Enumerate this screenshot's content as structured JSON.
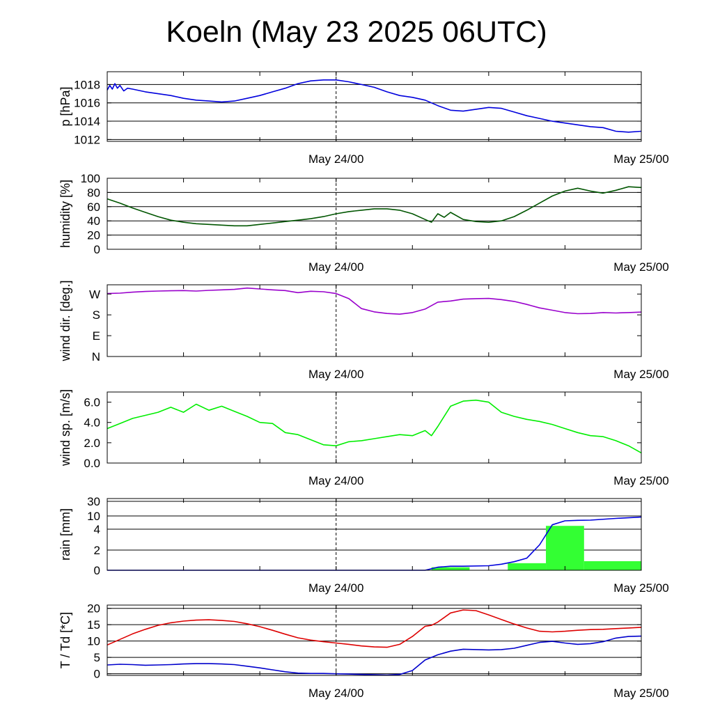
{
  "title": "Koeln (May 23 2025 06UTC)",
  "x_range_hours": [
    0,
    42
  ],
  "colors": {
    "pressure": "#0000dd",
    "humidity": "#005500",
    "wind_dir": "#9900cc",
    "wind_speed": "#00ee00",
    "rain_bar": "#33ff33",
    "rain_accum": "#0000dd",
    "temperature": "#dd0000",
    "dewpoint": "#0000cc"
  },
  "chart_data": [
    {
      "type": "line",
      "ylabel": "p [hPa]",
      "ylim": [
        1011.8,
        1019.4
      ],
      "yticks": [
        1012,
        1014,
        1016,
        1018
      ],
      "ytick_labels": [
        "1012",
        "1014",
        "1016",
        "1018"
      ],
      "grid": true,
      "xtick_labels": [
        {
          "x": 18,
          "label": "May 24/00"
        },
        {
          "x": 42,
          "label": "May 25/00"
        }
      ],
      "series": [
        {
          "color_key": "pressure",
          "x": [
            0,
            0.2,
            0.4,
            0.6,
            0.8,
            1.0,
            1.3,
            1.6,
            2,
            3,
            4,
            5,
            6,
            7,
            8,
            9,
            10,
            11,
            12,
            13,
            14,
            15,
            16,
            17,
            18,
            19,
            20,
            21,
            22,
            23,
            24,
            25,
            26,
            27,
            28,
            29,
            30,
            31,
            32,
            33,
            34,
            35,
            36,
            37,
            38,
            39,
            40,
            41,
            42
          ],
          "y": [
            1017.4,
            1017.9,
            1017.5,
            1018.1,
            1017.6,
            1017.9,
            1017.3,
            1017.6,
            1017.5,
            1017.2,
            1017.0,
            1016.8,
            1016.5,
            1016.3,
            1016.2,
            1016.1,
            1016.2,
            1016.5,
            1016.8,
            1017.2,
            1017.6,
            1018.1,
            1018.4,
            1018.5,
            1018.5,
            1018.3,
            1018.0,
            1017.7,
            1017.2,
            1016.8,
            1016.6,
            1016.3,
            1015.7,
            1015.2,
            1015.1,
            1015.3,
            1015.5,
            1015.4,
            1015.0,
            1014.6,
            1014.3,
            1014.0,
            1013.8,
            1013.6,
            1013.4,
            1013.3,
            1012.9,
            1012.8,
            1012.9
          ]
        }
      ]
    },
    {
      "type": "line",
      "ylabel": "humidity [%]",
      "ylim": [
        0,
        100
      ],
      "yticks": [
        0,
        20,
        40,
        60,
        80,
        100
      ],
      "ytick_labels": [
        "0",
        "20",
        "40",
        "60",
        "80",
        "100"
      ],
      "grid": true,
      "xtick_labels": [
        {
          "x": 18,
          "label": "May 24/00"
        },
        {
          "x": 42,
          "label": "May 25/00"
        }
      ],
      "series": [
        {
          "color_key": "humidity",
          "x": [
            0,
            1,
            2,
            3,
            4,
            5,
            6,
            7,
            8,
            9,
            10,
            11,
            12,
            13,
            14,
            15,
            16,
            17,
            18,
            19,
            20,
            21,
            22,
            23,
            24,
            25,
            25.5,
            26,
            26.5,
            27,
            28,
            29,
            30,
            31,
            32,
            33,
            34,
            35,
            36,
            37,
            38,
            39,
            40,
            41,
            42
          ],
          "y": [
            71,
            65,
            58,
            52,
            46,
            41,
            38,
            36,
            35,
            34,
            33,
            33,
            35,
            37,
            39,
            41,
            43,
            46,
            50,
            53,
            55,
            57,
            57,
            55,
            50,
            42,
            38,
            50,
            45,
            52,
            42,
            39,
            38,
            40,
            46,
            55,
            65,
            75,
            82,
            86,
            82,
            79,
            83,
            88,
            87
          ]
        }
      ]
    },
    {
      "type": "line",
      "ylabel": "wind dir. [deg.]",
      "ylim": [
        0,
        310
      ],
      "yticks": [
        0,
        90,
        180,
        270
      ],
      "ytick_labels": [
        "N",
        "E",
        "S",
        "W"
      ],
      "grid": false,
      "xtick_labels": [
        {
          "x": 18,
          "label": "May 24/00"
        },
        {
          "x": 42,
          "label": "May 25/00"
        }
      ],
      "series": [
        {
          "color_key": "wind_dir",
          "x": [
            0,
            1,
            2,
            3,
            4,
            5,
            6,
            7,
            8,
            9,
            10,
            11,
            12,
            13,
            14,
            15,
            16,
            17,
            18,
            19,
            20,
            21,
            22,
            23,
            24,
            25,
            26,
            27,
            28,
            29,
            30,
            31,
            32,
            33,
            34,
            35,
            36,
            37,
            38,
            39,
            40,
            41,
            42
          ],
          "y": [
            272,
            274,
            278,
            281,
            283,
            284,
            285,
            283,
            286,
            288,
            290,
            296,
            292,
            288,
            285,
            276,
            282,
            280,
            272,
            250,
            207,
            193,
            186,
            183,
            190,
            205,
            235,
            240,
            248,
            250,
            251,
            246,
            238,
            225,
            210,
            200,
            190,
            185,
            186,
            190,
            188,
            190,
            192
          ]
        }
      ]
    },
    {
      "type": "line",
      "ylabel": "wind sp. [m/s]",
      "ylim": [
        0,
        7.0
      ],
      "yticks": [
        0,
        2,
        4,
        6
      ],
      "ytick_labels": [
        "0.0",
        "2.0",
        "4.0",
        "6.0"
      ],
      "grid": false,
      "xtick_labels": [
        {
          "x": 18,
          "label": "May 24/00"
        },
        {
          "x": 42,
          "label": "May 25/00"
        }
      ],
      "series": [
        {
          "color_key": "wind_speed",
          "x": [
            0,
            1,
            2,
            3,
            4,
            5,
            6,
            7,
            8,
            9,
            10,
            11,
            12,
            13,
            14,
            15,
            16,
            17,
            18,
            19,
            20,
            21,
            22,
            23,
            24,
            25,
            25.5,
            26,
            27,
            28,
            29,
            30,
            31,
            32,
            33,
            34,
            35,
            36,
            37,
            38,
            39,
            40,
            41,
            42
          ],
          "y": [
            3.4,
            3.9,
            4.4,
            4.7,
            5.0,
            5.5,
            5.0,
            5.8,
            5.2,
            5.6,
            5.1,
            4.6,
            4.0,
            3.9,
            3.0,
            2.8,
            2.3,
            1.8,
            1.7,
            2.1,
            2.2,
            2.4,
            2.6,
            2.8,
            2.7,
            3.2,
            2.7,
            3.6,
            5.6,
            6.1,
            6.2,
            6.0,
            5.0,
            4.6,
            4.3,
            4.1,
            3.8,
            3.4,
            3.0,
            2.7,
            2.6,
            2.2,
            1.7,
            1.0
          ]
        }
      ]
    },
    {
      "type": "bar",
      "ylabel": "rain [mm]",
      "ylim": [
        0,
        30
      ],
      "yticks": [
        0,
        2,
        4,
        10,
        30
      ],
      "ytick_labels": [
        "0",
        "2",
        "4",
        "10",
        "30"
      ],
      "scale": "nonlinear",
      "grid": true,
      "xtick_labels": [
        {
          "x": 18,
          "label": "May 24/00"
        },
        {
          "x": 42,
          "label": "May 25/00"
        }
      ],
      "bars": [
        {
          "x0": 25.5,
          "x1": 28.5,
          "value": 0.3
        },
        {
          "x0": 31.5,
          "x1": 34.5,
          "value": 0.7
        },
        {
          "x0": 34.5,
          "x1": 37.5,
          "value": 5.5
        },
        {
          "x0": 37.5,
          "x1": 42,
          "value": 0.9
        }
      ],
      "series": [
        {
          "color_key": "rain_accum",
          "x": [
            0,
            25,
            26,
            27,
            28,
            30,
            31,
            32,
            33,
            34,
            35,
            36,
            37,
            38,
            40,
            42
          ],
          "y": [
            0,
            0,
            0.3,
            0.4,
            0.4,
            0.45,
            0.6,
            0.85,
            1.2,
            2.5,
            6.0,
            7.8,
            8.0,
            8.1,
            8.9,
            9.5
          ]
        }
      ]
    },
    {
      "type": "line",
      "ylabel": "T / Td [*C]",
      "ylim": [
        -0.5,
        21
      ],
      "yticks": [
        0,
        5,
        10,
        15,
        20
      ],
      "ytick_labels": [
        "0",
        "5",
        "10",
        "15",
        "20"
      ],
      "grid": true,
      "xtick_labels": [
        {
          "x": 18,
          "label": "May 24/00"
        },
        {
          "x": 42,
          "label": "May 25/00"
        }
      ],
      "series": [
        {
          "color_key": "temperature",
          "x": [
            0,
            1,
            2,
            3,
            4,
            5,
            6,
            7,
            8,
            9,
            10,
            11,
            12,
            13,
            14,
            15,
            16,
            17,
            18,
            19,
            20,
            21,
            22,
            23,
            24,
            25,
            25.5,
            26,
            27,
            28,
            29,
            30,
            31,
            32,
            33,
            34,
            35,
            36,
            37,
            38,
            39,
            40,
            41,
            42
          ],
          "y": [
            8.8,
            10.5,
            12.2,
            13.6,
            14.8,
            15.6,
            16.1,
            16.4,
            16.5,
            16.3,
            16.0,
            15.3,
            14.4,
            13.3,
            12.1,
            11.0,
            10.3,
            9.8,
            9.4,
            9.0,
            8.5,
            8.2,
            8.1,
            9.0,
            11.4,
            14.5,
            14.8,
            15.8,
            18.6,
            19.5,
            19.3,
            18.0,
            16.6,
            15.2,
            14.0,
            13.0,
            12.8,
            13.0,
            13.3,
            13.5,
            13.6,
            13.8,
            14.0,
            14.2
          ]
        },
        {
          "color_key": "dewpoint",
          "x": [
            0,
            1,
            2,
            3,
            4,
            5,
            6,
            7,
            8,
            9,
            10,
            11,
            12,
            13,
            14,
            15,
            16,
            17,
            18,
            19,
            20,
            21,
            22,
            23,
            24,
            25,
            26,
            27,
            28,
            29,
            30,
            31,
            32,
            33,
            34,
            35,
            36,
            37,
            38,
            39,
            40,
            41,
            42
          ],
          "y": [
            2.7,
            2.9,
            2.8,
            2.6,
            2.7,
            2.8,
            3.0,
            3.1,
            3.1,
            3.0,
            2.8,
            2.3,
            1.8,
            1.2,
            0.6,
            0.2,
            0.1,
            0.1,
            0.0,
            -0.1,
            -0.2,
            -0.3,
            -0.4,
            -0.2,
            1.0,
            4.2,
            5.8,
            6.9,
            7.5,
            7.4,
            7.3,
            7.4,
            7.8,
            8.7,
            9.6,
            9.9,
            9.4,
            9.0,
            9.2,
            9.8,
            10.9,
            11.4,
            11.5
          ]
        }
      ]
    }
  ]
}
